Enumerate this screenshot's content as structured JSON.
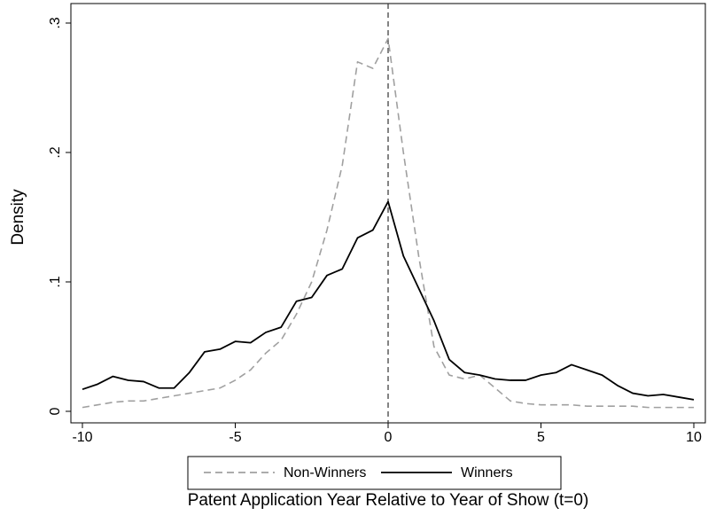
{
  "chart_data": {
    "type": "line",
    "xlabel": "Patent Application Year Relative to Year of Show (t=0)",
    "ylabel": "Density",
    "x": [
      -10,
      -9.5,
      -9,
      -8.5,
      -8,
      -7.5,
      -7,
      -6.5,
      -6,
      -5.5,
      -5,
      -4.5,
      -4,
      -3.5,
      -3,
      -2.5,
      -2,
      -1.5,
      -1,
      -0.5,
      0,
      0.5,
      1,
      1.5,
      2,
      2.5,
      3,
      3.5,
      4,
      4.5,
      5,
      5.5,
      6,
      6.5,
      7,
      7.5,
      8,
      8.5,
      9,
      9.5,
      10
    ],
    "series": [
      {
        "name": "Non-Winners",
        "color": "#a0a0a0",
        "style": "dashed",
        "values": [
          0.003,
          0.005,
          0.007,
          0.008,
          0.008,
          0.01,
          0.012,
          0.014,
          0.016,
          0.018,
          0.024,
          0.032,
          0.045,
          0.055,
          0.075,
          0.1,
          0.14,
          0.19,
          0.27,
          0.265,
          0.288,
          0.2,
          0.12,
          0.05,
          0.028,
          0.025,
          0.028,
          0.018,
          0.008,
          0.006,
          0.005,
          0.005,
          0.005,
          0.004,
          0.004,
          0.004,
          0.004,
          0.003,
          0.003,
          0.003,
          0.003
        ]
      },
      {
        "name": "Winners",
        "color": "#000000",
        "style": "solid",
        "values": [
          0.017,
          0.021,
          0.027,
          0.024,
          0.023,
          0.018,
          0.018,
          0.03,
          0.046,
          0.048,
          0.054,
          0.053,
          0.061,
          0.065,
          0.085,
          0.088,
          0.105,
          0.11,
          0.134,
          0.14,
          0.162,
          0.12,
          0.095,
          0.07,
          0.04,
          0.03,
          0.028,
          0.025,
          0.024,
          0.024,
          0.028,
          0.03,
          0.036,
          0.032,
          0.028,
          0.02,
          0.014,
          0.012,
          0.013,
          0.011,
          0.009
        ]
      }
    ],
    "xlim": [
      -10,
      10
    ],
    "xticks": [
      -10,
      -5,
      0,
      5,
      10
    ],
    "ylim": [
      0,
      0.3
    ],
    "yticks": [
      0,
      {
        "value": 0.1,
        "label": ".1"
      },
      {
        "value": 0.2,
        "label": ".2"
      },
      {
        "value": 0.3,
        "label": ".3"
      }
    ],
    "vline": 0,
    "legend": "bottom"
  }
}
